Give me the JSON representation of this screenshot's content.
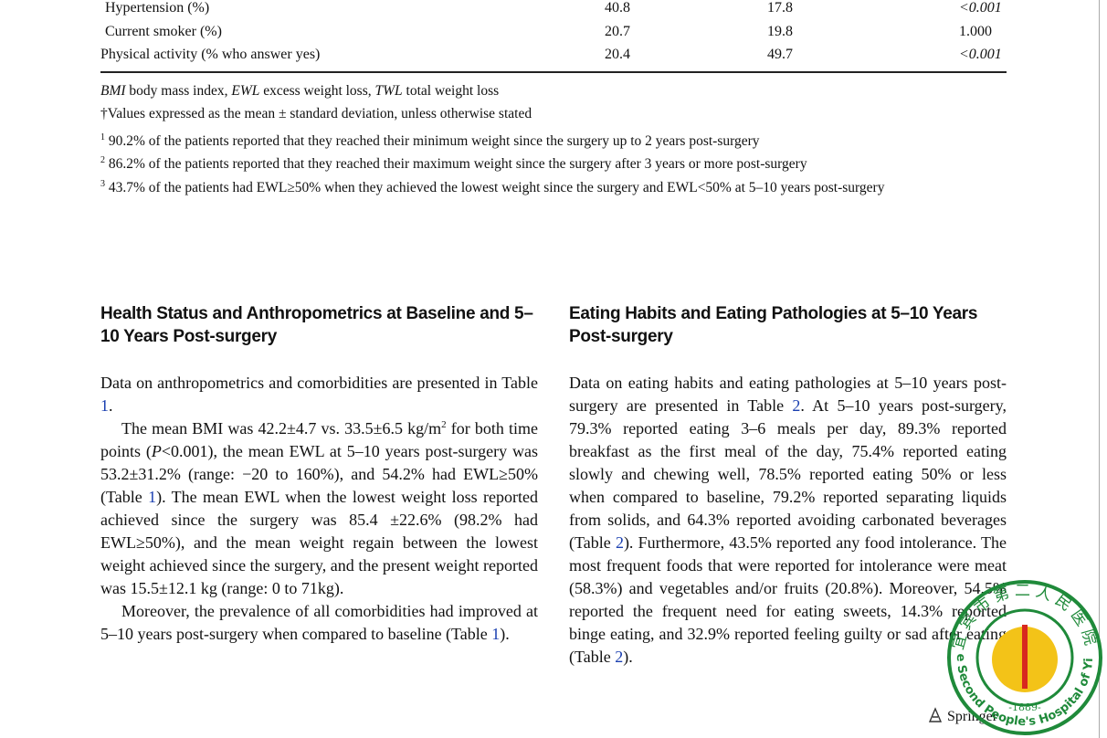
{
  "table": {
    "rows": [
      [
        "Hypertension (%)",
        "40.8",
        "17.8",
        "<0.001"
      ],
      [
        "Current smoker (%)",
        "20.7",
        "19.8",
        "1.000"
      ],
      [
        "Physical activity (% who answer yes)",
        "20.4",
        "49.7",
        "<0.001"
      ]
    ]
  },
  "abbreviations": [
    {
      "abbr": "BMI",
      "meaning": "body mass index,"
    },
    {
      "abbr": "EWL",
      "meaning": "excess weight loss,"
    },
    {
      "abbr": "TWL",
      "meaning": "total weight loss"
    }
  ],
  "footnotes": [
    {
      "mark": "†",
      "text": "Values expressed as the mean ± standard deviation, unless otherwise stated"
    },
    {
      "mark": "1",
      "text": "90.2% of the patients reported that they reached their minimum weight since the surgery up to 2 years post-surgery"
    },
    {
      "mark": "2",
      "text": "86.2% of the patients reported that they reached their maximum weight since the surgery after 3 years or more post-surgery"
    },
    {
      "mark": "3",
      "text": "43.7% of the patients had EWL≥50% when they achieved the lowest weight since the surgery and EWL<50% at 5–10 years post-surgery"
    }
  ],
  "sections": [
    {
      "heading": "Health Status and Anthropometrics at Baseline and 5–10 Years Post-surgery",
      "paragraphs": [
        [
          "Data on anthropometrics and comorbidities are presented in Table ",
          {
            "ref": "1"
          },
          "."
        ],
        [
          "The mean BMI was 42.2±4.7 vs. 33.5±6.5 kg/m",
          {
            "sup": "2"
          },
          " for both time points (",
          {
            "i": "P"
          },
          "<0.001), the mean EWL at 5–10 years post-surgery was 53.2±31.2% (range: −20 to 160%), and 54.2% had EWL≥50% (Table ",
          {
            "ref": "1"
          },
          "). The mean EWL when the lowest weight loss reported achieved since the surgery was 85.4 ±22.6% (98.2% had EWL≥50%), and the mean weight regain between the lowest weight achieved since the surgery, and the present weight reported was 15.5±12.1 kg (range: 0 to 71kg)."
        ],
        [
          "Moreover, the prevalence of all comorbidities had improved at 5–10 years post-surgery when compared to baseline (Table ",
          {
            "ref": "1"
          },
          ")."
        ]
      ]
    },
    {
      "heading": "Eating Habits and Eating Pathologies at 5–10 Years Post-surgery",
      "paragraphs": [
        [
          "Data on eating habits and eating pathologies at 5–10 years post-surgery are presented in Table ",
          {
            "ref": "2"
          },
          ". At 5–10 years post-surgery, 79.3% reported eating 3–6 meals per day, 89.3% reported breakfast as the first meal of the day, 75.4% reported eating slowly and chewing well, 78.5% reported eating 50% or less when compared to baseline, 79.2% reported separating liquids from solids, and 64.3% reported avoiding carbonated beverages (Table ",
          {
            "ref": "2"
          },
          "). Furthermore, 43.5% reported any food intolerance. The most frequent foods that were reported for intolerance were meat (58.3%) and vegetables and/or fruits (20.8%). Moreover, 54.5% reported the frequent need for eating sweets, 14.3% reported binge eating, and 32.9% reported feeling guilty or sad after eating (Table ",
          {
            "ref": "2"
          },
          ")."
        ]
      ]
    }
  ],
  "footer": {
    "publisher": "Springer"
  },
  "stamp": {
    "top": "宜宾市第二人民医院",
    "bottom": "The Second People's Hospital of Yibin",
    "year": "-1889-"
  }
}
